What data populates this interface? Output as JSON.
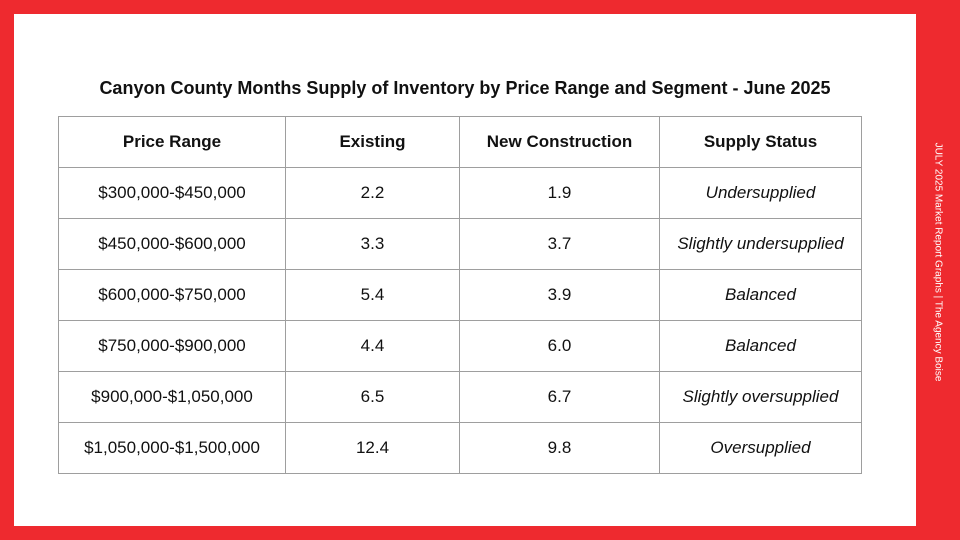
{
  "title": "Canyon County Months Supply of Inventory by Price Range and Segment - June 2025",
  "table": {
    "headers": [
      "Price Range",
      "Existing",
      "New Construction",
      "Supply Status"
    ],
    "rows": [
      [
        "$300,000-$450,000",
        "2.2",
        "1.9",
        "Undersupplied"
      ],
      [
        "$450,000-$600,000",
        "3.3",
        "3.7",
        "Slightly undersupplied"
      ],
      [
        "$600,000-$750,000",
        "5.4",
        "3.9",
        "Balanced"
      ],
      [
        "$750,000-$900,000",
        "4.4",
        "6.0",
        "Balanced"
      ],
      [
        "$900,000-$1,050,000",
        "6.5",
        "6.7",
        "Slightly oversupplied"
      ],
      [
        "$1,050,000-$1,500,000",
        "12.4",
        "9.8",
        "Oversupplied"
      ]
    ]
  },
  "side_label": "JULY 2025 Market Report Graphs  |  The Agency Boise",
  "colors": {
    "background": "#ee2a2f",
    "card": "#ffffff",
    "border": "#9e9e9e"
  }
}
